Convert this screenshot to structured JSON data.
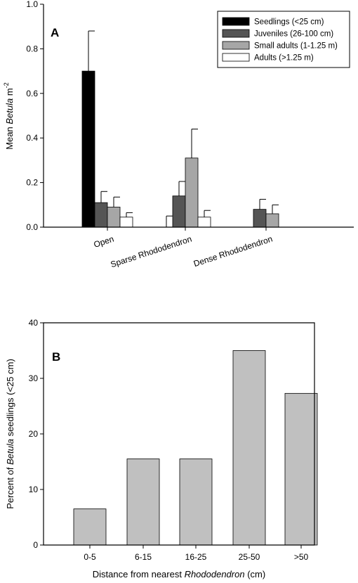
{
  "chart_data": [
    {
      "type": "bar",
      "panel_label": "A",
      "categories": [
        "Open",
        "Sparse Rhododendron",
        "Dense Rhododendron"
      ],
      "series": [
        {
          "name": "Seedlings (<25 cm)",
          "values": [
            0.7,
            0.0,
            0.0
          ],
          "errors": [
            0.18,
            0.05,
            null
          ],
          "color": "#000000"
        },
        {
          "name": "Juveniles (26-100 cm)",
          "values": [
            0.11,
            0.14,
            0.08
          ],
          "errors": [
            0.05,
            0.065,
            0.045
          ],
          "color": "#555555"
        },
        {
          "name": "Small adults (1-1.25 m)",
          "values": [
            0.09,
            0.31,
            0.06
          ],
          "errors": [
            0.045,
            0.13,
            0.04
          ],
          "color": "#a6a6a6"
        },
        {
          "name": "Adults (>1.25 m)",
          "values": [
            0.045,
            0.045,
            null
          ],
          "errors": [
            0.02,
            0.03,
            null
          ],
          "color": "#ffffff"
        }
      ],
      "ylabel_pre": "Mean ",
      "ylabel_italic": "Betula",
      "ylabel_post": " m",
      "ylabel_sup": "-2",
      "xlabel": "",
      "ylim": [
        0,
        1.0
      ],
      "yticks": [
        "0.0",
        "0.2",
        "0.4",
        "0.6",
        "0.8",
        "1.0"
      ],
      "legend_position": "top-right",
      "grid": false
    },
    {
      "type": "bar",
      "panel_label": "B",
      "categories": [
        "0-5",
        "6-15",
        "16-25",
        "25-50",
        ">50"
      ],
      "values": [
        6.5,
        15.5,
        15.5,
        35.0,
        27.3
      ],
      "bar_color": "#c0c0c0",
      "ylabel_pre": "Percent of ",
      "ylabel_italic": "Betula",
      "ylabel_post": " seedlings (<25 cm)",
      "xlabel_pre": "Distance from nearest ",
      "xlabel_italic": "Rhododendron",
      "xlabel_post": " (cm)",
      "ylim": [
        0,
        40
      ],
      "yticks": [
        "0",
        "10",
        "20",
        "30",
        "40"
      ],
      "grid": false
    }
  ]
}
